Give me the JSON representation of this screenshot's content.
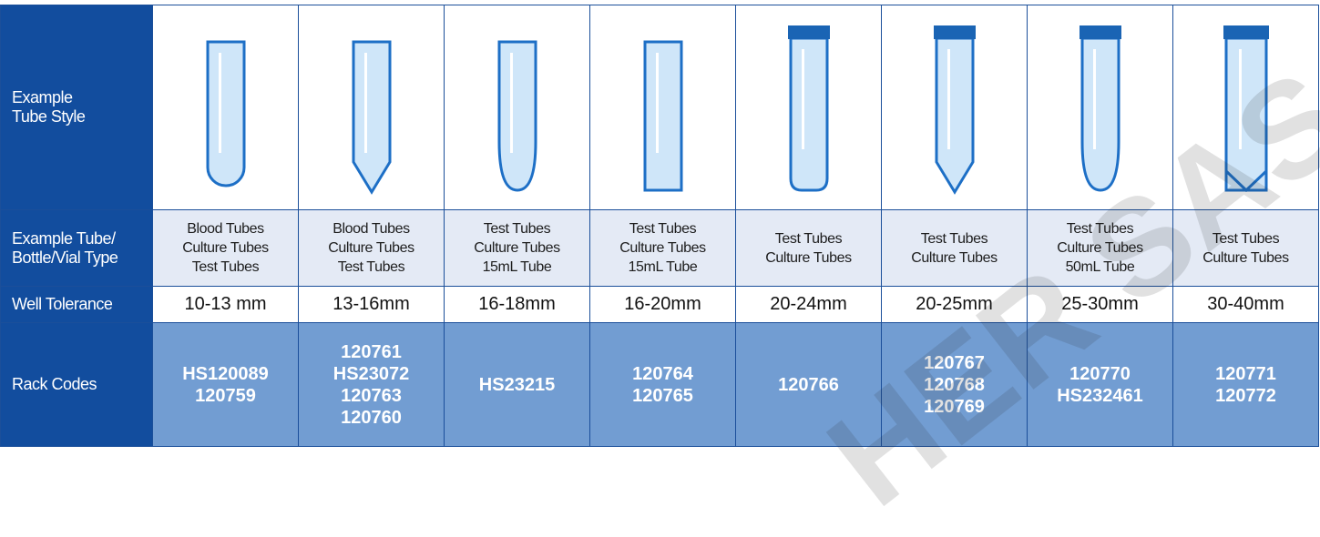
{
  "tube_style": {
    "label": [
      "Example",
      "Tube Style"
    ]
  },
  "tube_type": {
    "label": [
      "Example Tube/",
      "Bottle/Vial Type"
    ],
    "cells": [
      [
        "Blood Tubes",
        "Culture Tubes",
        "Test Tubes"
      ],
      [
        "Blood Tubes",
        "Culture Tubes",
        "Test Tubes"
      ],
      [
        "Test Tubes",
        "Culture Tubes",
        "15mL Tube"
      ],
      [
        "Test Tubes",
        "Culture Tubes",
        "15mL Tube"
      ],
      [
        "Test Tubes",
        "Culture Tubes"
      ],
      [
        "Test Tubes",
        "Culture Tubes"
      ],
      [
        "Test Tubes",
        "Culture Tubes",
        "50mL Tube"
      ],
      [
        "Test Tubes",
        "Culture Tubes"
      ]
    ]
  },
  "well_tolerance": {
    "label": [
      "Well Tolerance"
    ],
    "cells": [
      "10-13 mm",
      "13-16mm",
      "16-18mm",
      "16-20mm",
      "20-24mm",
      "20-25mm",
      "25-30mm",
      "30-40mm"
    ]
  },
  "rack_codes": {
    "label": [
      "Rack Codes"
    ],
    "cells": [
      [
        "HS120089",
        "120759"
      ],
      [
        "120761",
        "HS23072",
        "120763",
        "120760"
      ],
      [
        "HS23215"
      ],
      [
        "120764",
        "120765"
      ],
      [
        "120766"
      ],
      [
        "120767",
        "120768",
        "120769"
      ],
      [
        "120770",
        "HS232461"
      ],
      [
        "120771",
        "120772"
      ]
    ]
  },
  "watermark": "HER SAS"
}
